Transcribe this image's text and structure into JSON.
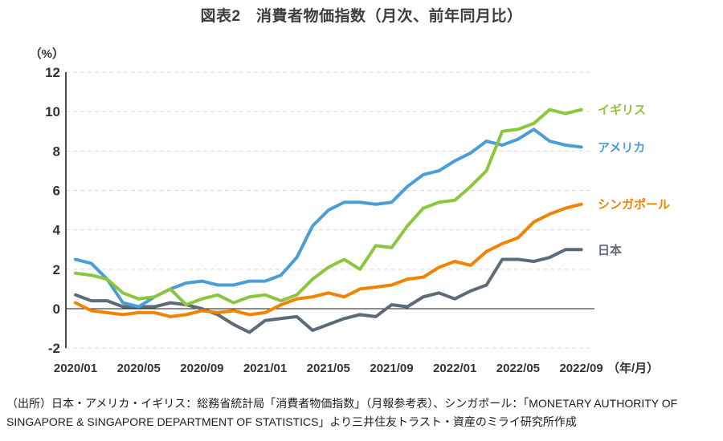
{
  "title": "図表2　消費者物価指数（月次、前年同月比）",
  "source_lines": [
    "（出所）日本・アメリカ・イギリス：総務省統計局「消費者物価指数」（月報参考表）、シンガポール：「MONETARY AUTHORITY OF",
    "SINGAPORE & SINGAPORE DEPARTMENT OF STATISTICS」より三井住友トラスト・資産のミライ研究所作成"
  ],
  "chart_data": {
    "type": "line",
    "title": "図表2　消費者物価指数（月次、前年同月比）",
    "y_axis_unit_label": "（%）",
    "x_axis_unit_label": "（年/月）",
    "ylim": [
      -2,
      12
    ],
    "y_ticks": [
      -2,
      0,
      2,
      4,
      6,
      8,
      10,
      12
    ],
    "grid": "horizontal-dashed",
    "legend_position": "right-of-line-ends",
    "x": [
      "2020/01",
      "2020/02",
      "2020/03",
      "2020/04",
      "2020/05",
      "2020/06",
      "2020/07",
      "2020/08",
      "2020/09",
      "2020/10",
      "2020/11",
      "2020/12",
      "2021/01",
      "2021/02",
      "2021/03",
      "2021/04",
      "2021/05",
      "2021/06",
      "2021/07",
      "2021/08",
      "2021/09",
      "2021/10",
      "2021/11",
      "2021/12",
      "2022/01",
      "2022/02",
      "2022/03",
      "2022/04",
      "2022/05",
      "2022/06",
      "2022/07",
      "2022/08",
      "2022/09"
    ],
    "x_tick_labels": [
      "2020/01",
      "2020/05",
      "2020/09",
      "2021/01",
      "2021/05",
      "2021/09",
      "2022/01",
      "2022/05",
      "2022/09"
    ],
    "x_tick_step_months": 4,
    "series": [
      {
        "id": "japan",
        "name": "日本",
        "color": "#5C6B79",
        "values": [
          0.7,
          0.4,
          0.4,
          0.1,
          0.1,
          0.1,
          0.3,
          0.2,
          0.0,
          -0.3,
          -0.8,
          -1.2,
          -0.6,
          -0.5,
          -0.4,
          -1.1,
          -0.8,
          -0.5,
          -0.3,
          -0.4,
          0.2,
          0.1,
          0.6,
          0.8,
          0.5,
          0.9,
          1.2,
          2.5,
          2.5,
          2.4,
          2.6,
          3.0,
          3.0
        ]
      },
      {
        "id": "singapore",
        "name": "シンガポール",
        "color": "#F08300",
        "values": [
          0.3,
          -0.1,
          -0.2,
          -0.3,
          -0.2,
          -0.2,
          -0.4,
          -0.3,
          -0.1,
          -0.2,
          -0.1,
          -0.3,
          -0.2,
          0.2,
          0.5,
          0.6,
          0.8,
          0.6,
          1.0,
          1.1,
          1.2,
          1.5,
          1.6,
          2.1,
          2.4,
          2.2,
          2.9,
          3.3,
          3.6,
          4.4,
          4.8,
          5.1,
          5.3
        ]
      },
      {
        "id": "us",
        "name": "アメリカ",
        "color": "#4A9DD6",
        "values": [
          2.5,
          2.3,
          1.5,
          0.3,
          0.1,
          0.6,
          1.0,
          1.3,
          1.4,
          1.2,
          1.2,
          1.4,
          1.4,
          1.7,
          2.6,
          4.2,
          5.0,
          5.4,
          5.4,
          5.3,
          5.4,
          6.2,
          6.8,
          7.0,
          7.5,
          7.9,
          8.5,
          8.3,
          8.6,
          9.1,
          8.5,
          8.3,
          8.2
        ]
      },
      {
        "id": "uk",
        "name": "イギリス",
        "color": "#8CC63F",
        "values": [
          1.8,
          1.7,
          1.5,
          0.8,
          0.5,
          0.6,
          1.0,
          0.2,
          0.5,
          0.7,
          0.3,
          0.6,
          0.7,
          0.4,
          0.7,
          1.5,
          2.1,
          2.5,
          2.0,
          3.2,
          3.1,
          4.2,
          5.1,
          5.4,
          5.5,
          6.2,
          7.0,
          9.0,
          9.1,
          9.4,
          10.1,
          9.9,
          10.1
        ]
      }
    ]
  }
}
